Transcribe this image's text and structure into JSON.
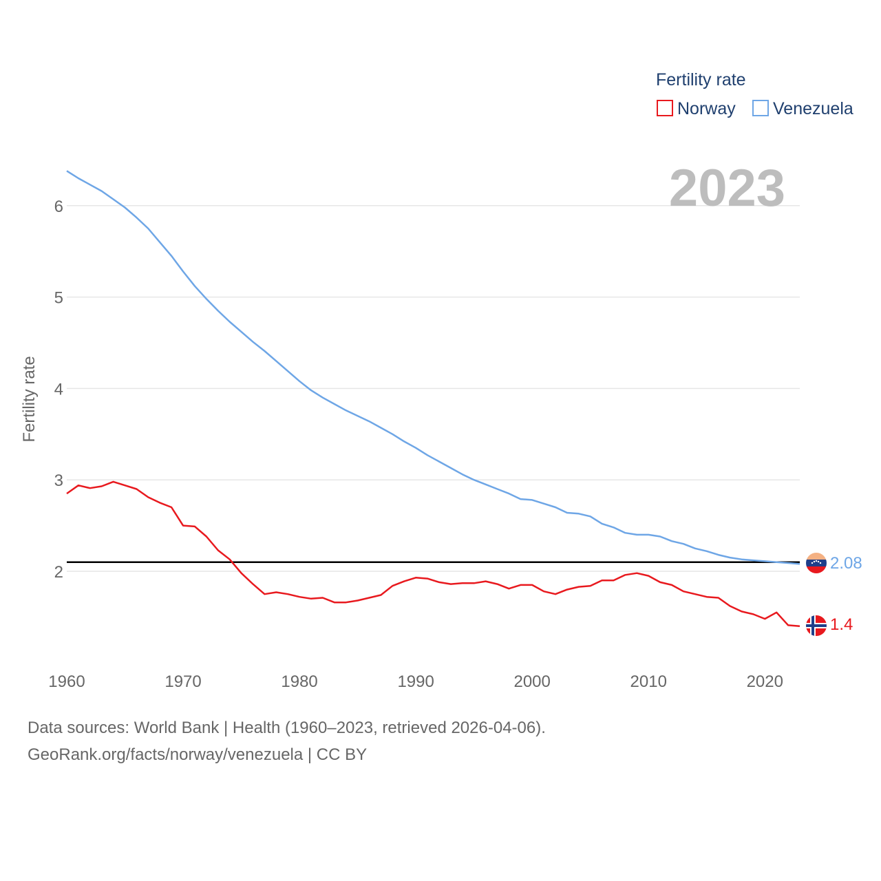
{
  "colors": {
    "norway": "#e8191e",
    "venezuela": "#6ea6e6",
    "reference": "#000000",
    "grid": "#e6e6e6",
    "year": "#bdbdbd",
    "legend_text": "#1f3f6e"
  },
  "legend": {
    "title": "Fertility rate",
    "items": [
      "Norway",
      "Venezuela"
    ]
  },
  "year_label": "2023",
  "end_labels": {
    "norway": "1.4",
    "venezuela": "2.08"
  },
  "flags": {
    "norway": "norway-flag-icon",
    "venezuela": "venezuela-flag-icon"
  },
  "footer": {
    "line1": "Data sources: World Bank | Health (1960–2023, retrieved 2026-04-06).",
    "line2": "GeoRank.org/facts/norway/venezuela | CC BY"
  },
  "chart_data": {
    "type": "line",
    "title": "",
    "xlabel": "",
    "ylabel": "Fertility rate",
    "xlim": [
      1960,
      2023
    ],
    "ylim": [
      1,
      6.5
    ],
    "x_ticks": [
      1960,
      1970,
      1980,
      1990,
      2000,
      2010,
      2020
    ],
    "y_ticks": [
      2,
      3,
      4,
      5,
      6
    ],
    "grid": true,
    "legend_position": "top-right",
    "reference_line": {
      "y": 2.1
    },
    "x": [
      1960,
      1961,
      1962,
      1963,
      1964,
      1965,
      1966,
      1967,
      1968,
      1969,
      1970,
      1971,
      1972,
      1973,
      1974,
      1975,
      1976,
      1977,
      1978,
      1979,
      1980,
      1981,
      1982,
      1983,
      1984,
      1985,
      1986,
      1987,
      1988,
      1989,
      1990,
      1991,
      1992,
      1993,
      1994,
      1995,
      1996,
      1997,
      1998,
      1999,
      2000,
      2001,
      2002,
      2003,
      2004,
      2005,
      2006,
      2007,
      2008,
      2009,
      2010,
      2011,
      2012,
      2013,
      2014,
      2015,
      2016,
      2017,
      2018,
      2019,
      2020,
      2021,
      2022,
      2023
    ],
    "series": [
      {
        "name": "Norway",
        "values": [
          2.85,
          2.94,
          2.91,
          2.93,
          2.98,
          2.94,
          2.9,
          2.81,
          2.75,
          2.7,
          2.5,
          2.49,
          2.38,
          2.23,
          2.13,
          1.98,
          1.86,
          1.75,
          1.77,
          1.75,
          1.72,
          1.7,
          1.71,
          1.66,
          1.66,
          1.68,
          1.71,
          1.74,
          1.84,
          1.89,
          1.93,
          1.92,
          1.88,
          1.86,
          1.87,
          1.87,
          1.89,
          1.86,
          1.81,
          1.85,
          1.85,
          1.78,
          1.75,
          1.8,
          1.83,
          1.84,
          1.9,
          1.9,
          1.96,
          1.98,
          1.95,
          1.88,
          1.85,
          1.78,
          1.75,
          1.72,
          1.71,
          1.62,
          1.56,
          1.53,
          1.48,
          1.55,
          1.41,
          1.4
        ]
      },
      {
        "name": "Venezuela",
        "values": [
          6.38,
          6.3,
          6.23,
          6.16,
          6.07,
          5.98,
          5.87,
          5.75,
          5.6,
          5.45,
          5.28,
          5.12,
          4.98,
          4.85,
          4.73,
          4.62,
          4.51,
          4.41,
          4.3,
          4.19,
          4.08,
          3.98,
          3.9,
          3.83,
          3.76,
          3.7,
          3.64,
          3.57,
          3.5,
          3.42,
          3.35,
          3.27,
          3.2,
          3.13,
          3.06,
          3.0,
          2.95,
          2.9,
          2.85,
          2.79,
          2.78,
          2.74,
          2.7,
          2.64,
          2.63,
          2.6,
          2.52,
          2.48,
          2.42,
          2.4,
          2.4,
          2.38,
          2.33,
          2.3,
          2.25,
          2.22,
          2.18,
          2.15,
          2.13,
          2.12,
          2.11,
          2.1,
          2.09,
          2.08
        ]
      }
    ]
  }
}
